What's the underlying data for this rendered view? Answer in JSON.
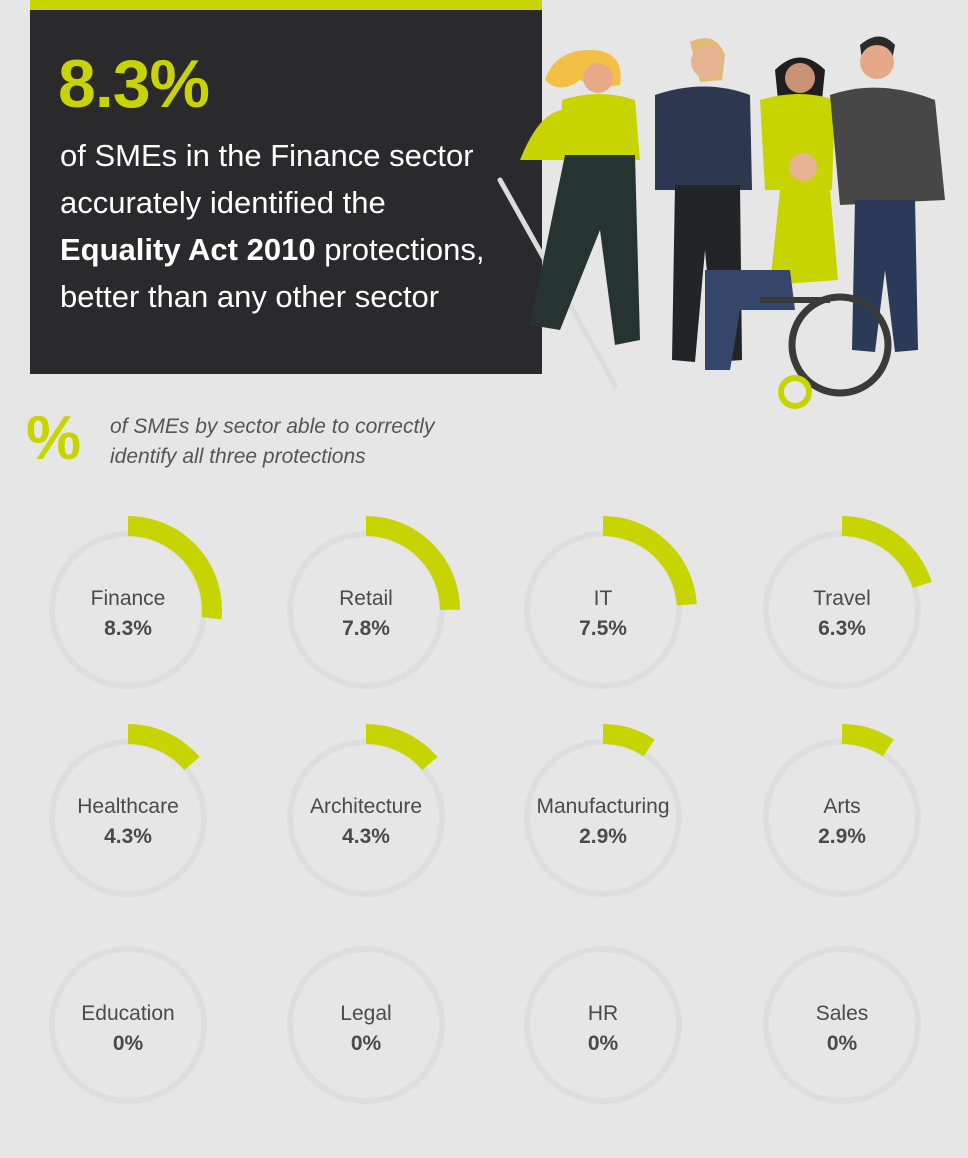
{
  "hero": {
    "stat": "8.3%",
    "line1": "of SMEs in the Finance sector",
    "line2": "accurately identified the",
    "line3_bold": "Equality Act 2010",
    "line3_rest": " protections,",
    "line4": "better than any other sector"
  },
  "subtitle": {
    "symbol": "%",
    "line1": "of SMEs by sector able to correctly",
    "line2": "identify all three protections"
  },
  "colors": {
    "accent": "#c8d400",
    "dark_panel": "#2a2a2c",
    "background": "#e6e6e6",
    "ring_track": "#dedede",
    "text": "#4a4a4a"
  },
  "illustration": {
    "icon": "diverse-people-group-illustration"
  },
  "chart_data": {
    "type": "donut-grid",
    "title": "",
    "categories": [
      "Finance",
      "Retail",
      "IT",
      "Travel",
      "Healthcare",
      "Architecture",
      "Manufacturing",
      "Arts",
      "Education",
      "Legal",
      "HR",
      "Sales"
    ],
    "values": [
      8.3,
      7.8,
      7.5,
      6.3,
      4.3,
      4.3,
      2.9,
      2.9,
      0,
      0,
      0,
      0
    ],
    "value_labels": [
      "8.3%",
      "7.8%",
      "7.5%",
      "6.3%",
      "4.3%",
      "4.3%",
      "2.9%",
      "2.9%",
      "0%",
      "0%",
      "0%",
      "0%"
    ],
    "unit": "%",
    "full_scale": 100
  }
}
